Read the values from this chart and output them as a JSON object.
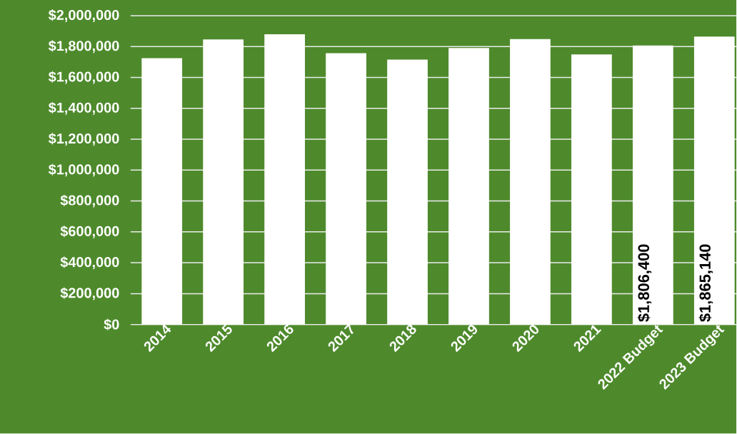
{
  "chart_data": {
    "type": "bar",
    "categories": [
      "2014",
      "2015",
      "2016",
      "2017",
      "2018",
      "2019",
      "2020",
      "2021",
      "2022 Budget",
      "2023 Budget"
    ],
    "values": [
      1725000,
      1846000,
      1880000,
      1757000,
      1716000,
      1791000,
      1848000,
      1749000,
      1806400,
      1865140
    ],
    "value_labels": [
      null,
      null,
      null,
      null,
      null,
      null,
      null,
      null,
      "$1,806,400",
      "$1,865,140"
    ],
    "color": "#ffffff",
    "ylim": [
      0,
      2000000
    ],
    "yticks": [
      {
        "value": 0,
        "label": "$0"
      },
      {
        "value": 200000,
        "label": "$200,000"
      },
      {
        "value": 400000,
        "label": "$400,000"
      },
      {
        "value": 600000,
        "label": "$600,000"
      },
      {
        "value": 800000,
        "label": "$800,000"
      },
      {
        "value": 1000000,
        "label": "$1,000,000"
      },
      {
        "value": 1200000,
        "label": "$1,200,000"
      },
      {
        "value": 1400000,
        "label": "$1,400,000"
      },
      {
        "value": 1600000,
        "label": "$1,600,000"
      },
      {
        "value": 1800000,
        "label": "$1,800,000"
      },
      {
        "value": 2000000,
        "label": "$2,000,000"
      }
    ],
    "grid": "y"
  }
}
